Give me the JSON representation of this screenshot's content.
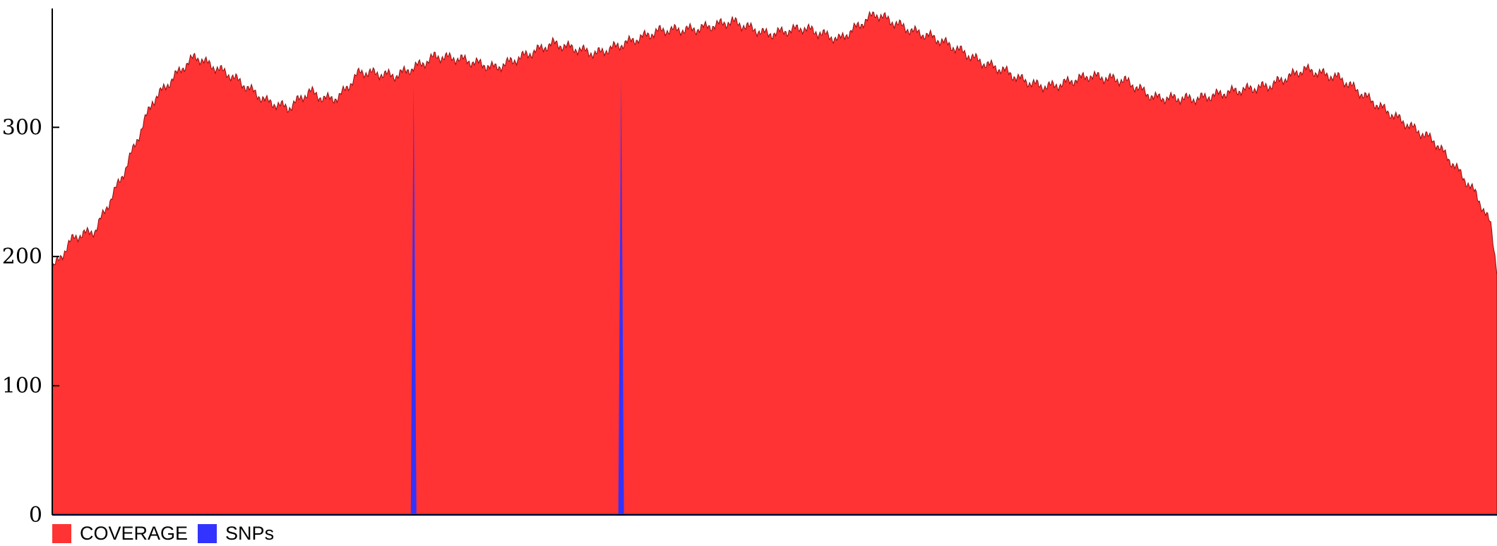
{
  "chart_data": {
    "type": "area",
    "title": "",
    "xlabel": "",
    "ylabel": "",
    "ylim": [
      0,
      392
    ],
    "yticks": [
      0,
      100,
      200,
      300
    ],
    "grid": false,
    "legend_position": "bottom-left",
    "colors": {
      "coverage": "#ff3333",
      "snps": "#3333ff"
    },
    "x": [
      0,
      30,
      60,
      100,
      140,
      180,
      200,
      215,
      250,
      300,
      330,
      360,
      380,
      400,
      430,
      480,
      520,
      535,
      570,
      620,
      700,
      760,
      800,
      850,
      900,
      950,
      1000,
      1050,
      1100,
      1150,
      1200,
      1230,
      1260,
      1300,
      1330,
      1350,
      1380,
      1400,
      1450,
      1500,
      1540,
      1600,
      1650,
      1700,
      1750,
      1800,
      1850,
      1900,
      1930,
      1960,
      1990,
      2010,
      2019
    ],
    "series": [
      {
        "name": "COVERAGE",
        "values": [
          190,
          215,
          220,
          265,
          320,
          345,
          355,
          350,
          340,
          320,
          315,
          328,
          322,
          323,
          343,
          340,
          350,
          355,
          353,
          346,
          365,
          357,
          365,
          375,
          376,
          382,
          372,
          377,
          368,
          388,
          375,
          370,
          362,
          350,
          344,
          338,
          332,
          332,
          340,
          336,
          323,
          322,
          328,
          332,
          345,
          338,
          318,
          300,
          290,
          270,
          248,
          225,
          190
        ]
      },
      {
        "name": "SNPs",
        "values": [
          0,
          0,
          0,
          1,
          0,
          1,
          0,
          0,
          0,
          0,
          0,
          0,
          0,
          0,
          0,
          1,
          0,
          0,
          0,
          0,
          0,
          0,
          0,
          0,
          0,
          0,
          0,
          0,
          0,
          0,
          0,
          0,
          0,
          0,
          0,
          0,
          0,
          0,
          0,
          0,
          0,
          0,
          0,
          0,
          0,
          0,
          0,
          0,
          0,
          0,
          0,
          0,
          0
        ],
        "spikes": [
          {
            "x": 505,
            "value": 333
          },
          {
            "x": 795,
            "value": 340
          }
        ]
      }
    ]
  }
}
